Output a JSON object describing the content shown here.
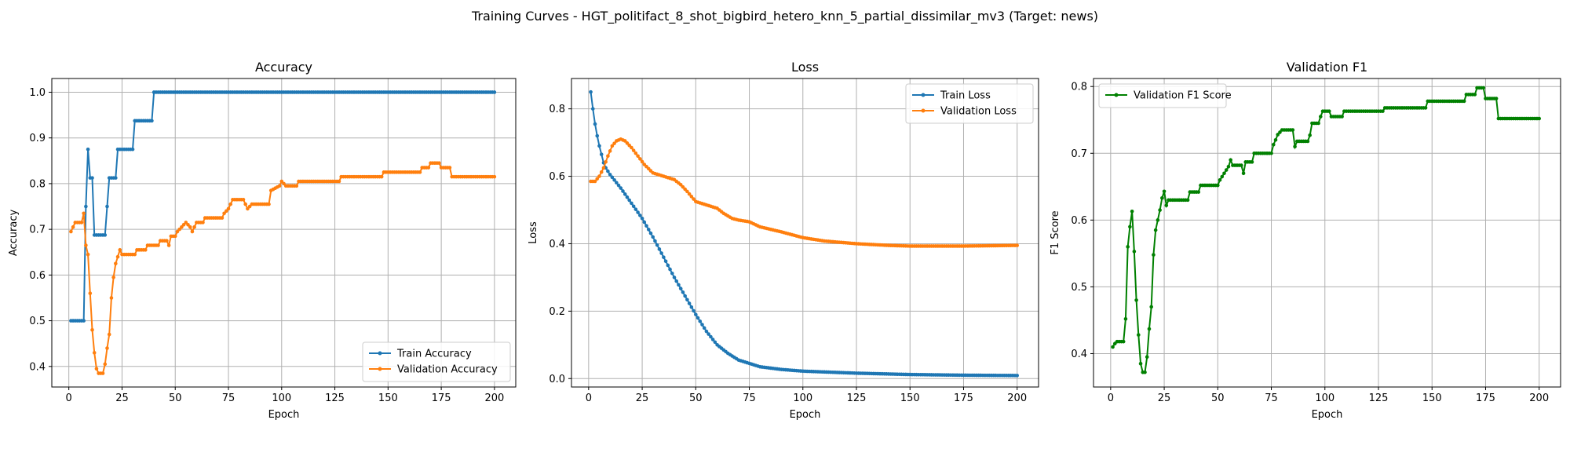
{
  "figure": {
    "suptitle": "Training Curves - HGT_politifact_8_shot_bigbird_hetero_knn_5_partial_dissimilar_mv3 (Target: news)"
  },
  "colors": {
    "train": "#1f77b4",
    "validation": "#ff7f0e",
    "f1": "#008000",
    "grid": "#b0b0b0"
  },
  "chart_data": [
    {
      "type": "line",
      "title": "Accuracy",
      "xlabel": "Epoch",
      "ylabel": "Accuracy",
      "xlim": [
        -8,
        210
      ],
      "ylim": [
        0.355,
        1.03
      ],
      "xticks": [
        0,
        25,
        50,
        75,
        100,
        125,
        150,
        175,
        200
      ],
      "yticks": [
        0.4,
        0.5,
        0.6,
        0.7,
        0.8,
        0.9,
        1.0
      ],
      "ytick_labels": [
        "0.4",
        "0.5",
        "0.6",
        "0.7",
        "0.8",
        "0.9",
        "1.0"
      ],
      "grid": true,
      "legend": "lower-right",
      "series": [
        {
          "name": "Train Accuracy",
          "color": "#1f77b4",
          "points": [
            [
              1,
              0.5
            ],
            [
              7,
              0.5
            ],
            [
              8,
              0.75
            ],
            [
              9,
              0.875
            ],
            [
              10,
              0.8125
            ],
            [
              11,
              0.8125
            ],
            [
              12,
              0.6875
            ],
            [
              17,
              0.6875
            ],
            [
              18,
              0.75
            ],
            [
              19,
              0.8125
            ],
            [
              22,
              0.8125
            ],
            [
              23,
              0.875
            ],
            [
              30,
              0.875
            ],
            [
              31,
              0.9375
            ],
            [
              39,
              0.9375
            ],
            [
              40,
              1.0
            ],
            [
              200,
              1.0
            ]
          ]
        },
        {
          "name": "Validation Accuracy",
          "color": "#ff7f0e",
          "points": [
            [
              1,
              0.695
            ],
            [
              2,
              0.705
            ],
            [
              3,
              0.715
            ],
            [
              6,
              0.715
            ],
            [
              7,
              0.735
            ],
            [
              8,
              0.665
            ],
            [
              9,
              0.645
            ],
            [
              10,
              0.56
            ],
            [
              11,
              0.48
            ],
            [
              12,
              0.43
            ],
            [
              13,
              0.395
            ],
            [
              14,
              0.385
            ],
            [
              16,
              0.385
            ],
            [
              17,
              0.405
            ],
            [
              18,
              0.44
            ],
            [
              19,
              0.47
            ],
            [
              20,
              0.55
            ],
            [
              21,
              0.595
            ],
            [
              22,
              0.625
            ],
            [
              23,
              0.64
            ],
            [
              24,
              0.655
            ],
            [
              25,
              0.645
            ],
            [
              31,
              0.645
            ],
            [
              32,
              0.655
            ],
            [
              36,
              0.655
            ],
            [
              37,
              0.665
            ],
            [
              42,
              0.665
            ],
            [
              43,
              0.675
            ],
            [
              46,
              0.675
            ],
            [
              47,
              0.665
            ],
            [
              48,
              0.685
            ],
            [
              50,
              0.685
            ],
            [
              51,
              0.695
            ],
            [
              53,
              0.705
            ],
            [
              55,
              0.715
            ],
            [
              57,
              0.705
            ],
            [
              58,
              0.695
            ],
            [
              60,
              0.715
            ],
            [
              63,
              0.715
            ],
            [
              64,
              0.725
            ],
            [
              72,
              0.725
            ],
            [
              73,
              0.735
            ],
            [
              75,
              0.745
            ],
            [
              77,
              0.765
            ],
            [
              82,
              0.765
            ],
            [
              83,
              0.755
            ],
            [
              84,
              0.745
            ],
            [
              86,
              0.755
            ],
            [
              94,
              0.755
            ],
            [
              95,
              0.785
            ],
            [
              99,
              0.795
            ],
            [
              100,
              0.805
            ],
            [
              102,
              0.795
            ],
            [
              107,
              0.795
            ],
            [
              108,
              0.805
            ],
            [
              127,
              0.805
            ],
            [
              128,
              0.815
            ],
            [
              147,
              0.815
            ],
            [
              148,
              0.825
            ],
            [
              165,
              0.825
            ],
            [
              166,
              0.835
            ],
            [
              169,
              0.835
            ],
            [
              170,
              0.845
            ],
            [
              174,
              0.845
            ],
            [
              175,
              0.835
            ],
            [
              179,
              0.835
            ],
            [
              180,
              0.815
            ],
            [
              200,
              0.815
            ]
          ]
        }
      ]
    },
    {
      "type": "line",
      "title": "Loss",
      "xlabel": "Epoch",
      "ylabel": "Loss",
      "xlim": [
        -8,
        210
      ],
      "ylim": [
        -0.025,
        0.89
      ],
      "xticks": [
        0,
        25,
        50,
        75,
        100,
        125,
        150,
        175,
        200
      ],
      "yticks": [
        0.0,
        0.2,
        0.4,
        0.6,
        0.8
      ],
      "ytick_labels": [
        "0.0",
        "0.2",
        "0.4",
        "0.6",
        "0.8"
      ],
      "grid": true,
      "legend": "upper-right",
      "series": [
        {
          "name": "Train Loss",
          "color": "#1f77b4",
          "points": [
            [
              1,
              0.85
            ],
            [
              2,
              0.8
            ],
            [
              3,
              0.755
            ],
            [
              4,
              0.72
            ],
            [
              5,
              0.69
            ],
            [
              6,
              0.665
            ],
            [
              7,
              0.64
            ],
            [
              8,
              0.625
            ],
            [
              10,
              0.605
            ],
            [
              15,
              0.565
            ],
            [
              20,
              0.52
            ],
            [
              25,
              0.475
            ],
            [
              30,
              0.42
            ],
            [
              35,
              0.36
            ],
            [
              40,
              0.3
            ],
            [
              45,
              0.245
            ],
            [
              50,
              0.19
            ],
            [
              55,
              0.14
            ],
            [
              60,
              0.1
            ],
            [
              65,
              0.075
            ],
            [
              70,
              0.055
            ],
            [
              75,
              0.045
            ],
            [
              80,
              0.035
            ],
            [
              90,
              0.027
            ],
            [
              100,
              0.022
            ],
            [
              125,
              0.016
            ],
            [
              150,
              0.012
            ],
            [
              175,
              0.01
            ],
            [
              200,
              0.009
            ]
          ]
        },
        {
          "name": "Validation Loss",
          "color": "#ff7f0e",
          "points": [
            [
              1,
              0.585
            ],
            [
              3,
              0.585
            ],
            [
              5,
              0.6
            ],
            [
              7,
              0.625
            ],
            [
              9,
              0.66
            ],
            [
              11,
              0.69
            ],
            [
              13,
              0.705
            ],
            [
              15,
              0.71
            ],
            [
              17,
              0.705
            ],
            [
              20,
              0.685
            ],
            [
              23,
              0.66
            ],
            [
              26,
              0.635
            ],
            [
              30,
              0.61
            ],
            [
              35,
              0.6
            ],
            [
              40,
              0.59
            ],
            [
              43,
              0.575
            ],
            [
              46,
              0.555
            ],
            [
              50,
              0.525
            ],
            [
              55,
              0.515
            ],
            [
              60,
              0.505
            ],
            [
              63,
              0.49
            ],
            [
              67,
              0.475
            ],
            [
              70,
              0.47
            ],
            [
              75,
              0.465
            ],
            [
              80,
              0.45
            ],
            [
              90,
              0.435
            ],
            [
              100,
              0.418
            ],
            [
              110,
              0.408
            ],
            [
              125,
              0.4
            ],
            [
              140,
              0.395
            ],
            [
              150,
              0.393
            ],
            [
              175,
              0.393
            ],
            [
              200,
              0.395
            ]
          ]
        }
      ]
    },
    {
      "type": "line",
      "title": "Validation F1",
      "xlabel": "Epoch",
      "ylabel": "F1 Score",
      "xlim": [
        -8,
        210
      ],
      "ylim": [
        0.35,
        0.812
      ],
      "xticks": [
        0,
        25,
        50,
        75,
        100,
        125,
        150,
        175,
        200
      ],
      "yticks": [
        0.4,
        0.5,
        0.6,
        0.7,
        0.8
      ],
      "ytick_labels": [
        "0.4",
        "0.5",
        "0.6",
        "0.7",
        "0.8"
      ],
      "grid": true,
      "legend": "upper-left",
      "series": [
        {
          "name": "Validation F1 Score",
          "color": "#008000",
          "points": [
            [
              1,
              0.41
            ],
            [
              2,
              0.415
            ],
            [
              3,
              0.418
            ],
            [
              6,
              0.418
            ],
            [
              7,
              0.452
            ],
            [
              8,
              0.56
            ],
            [
              9,
              0.59
            ],
            [
              10,
              0.613
            ],
            [
              11,
              0.553
            ],
            [
              12,
              0.48
            ],
            [
              13,
              0.428
            ],
            [
              14,
              0.385
            ],
            [
              15,
              0.372
            ],
            [
              16,
              0.372
            ],
            [
              17,
              0.395
            ],
            [
              18,
              0.437
            ],
            [
              19,
              0.47
            ],
            [
              20,
              0.548
            ],
            [
              21,
              0.585
            ],
            [
              22,
              0.6
            ],
            [
              23,
              0.615
            ],
            [
              24,
              0.633
            ],
            [
              25,
              0.643
            ],
            [
              26,
              0.622
            ],
            [
              27,
              0.63
            ],
            [
              36,
              0.63
            ],
            [
              37,
              0.642
            ],
            [
              41,
              0.642
            ],
            [
              42,
              0.652
            ],
            [
              50,
              0.652
            ],
            [
              51,
              0.66
            ],
            [
              53,
              0.67
            ],
            [
              55,
              0.68
            ],
            [
              56,
              0.69
            ],
            [
              57,
              0.682
            ],
            [
              61,
              0.682
            ],
            [
              62,
              0.67
            ],
            [
              63,
              0.687
            ],
            [
              66,
              0.687
            ],
            [
              67,
              0.7
            ],
            [
              75,
              0.7
            ],
            [
              76,
              0.713
            ],
            [
              77,
              0.72
            ],
            [
              78,
              0.728
            ],
            [
              80,
              0.735
            ],
            [
              85,
              0.735
            ],
            [
              86,
              0.71
            ],
            [
              87,
              0.718
            ],
            [
              92,
              0.718
            ],
            [
              93,
              0.727
            ],
            [
              94,
              0.745
            ],
            [
              97,
              0.745
            ],
            [
              98,
              0.755
            ],
            [
              99,
              0.763
            ],
            [
              102,
              0.763
            ],
            [
              103,
              0.755
            ],
            [
              108,
              0.755
            ],
            [
              109,
              0.763
            ],
            [
              127,
              0.763
            ],
            [
              128,
              0.768
            ],
            [
              147,
              0.768
            ],
            [
              148,
              0.778
            ],
            [
              165,
              0.778
            ],
            [
              166,
              0.788
            ],
            [
              170,
              0.788
            ],
            [
              171,
              0.798
            ],
            [
              174,
              0.798
            ],
            [
              175,
              0.782
            ],
            [
              180,
              0.782
            ],
            [
              181,
              0.752
            ],
            [
              200,
              0.752
            ]
          ]
        }
      ]
    }
  ]
}
